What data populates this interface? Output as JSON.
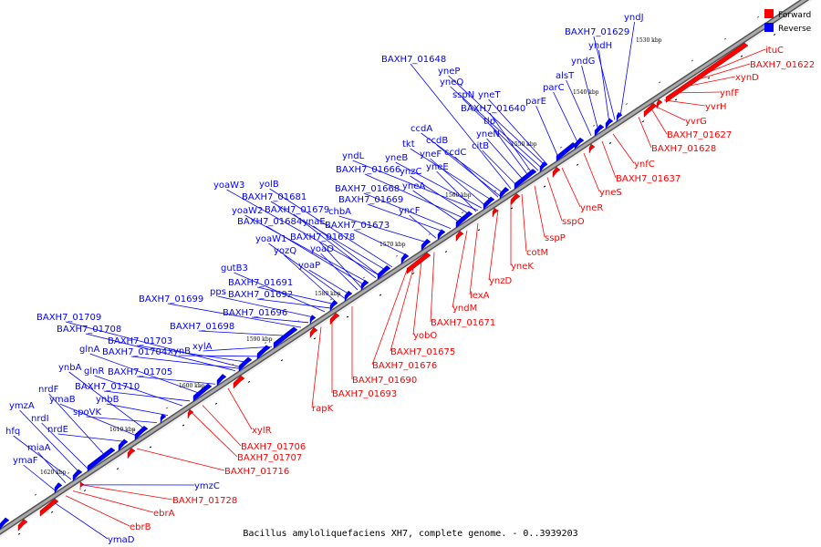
{
  "caption": "Bacillus amyloliquefaciens XH7, complete genome. - 0..3939203",
  "legend": [
    {
      "label": "Forward",
      "color": "#ff0000"
    },
    {
      "label": "Reverse",
      "color": "#0000ff"
    }
  ],
  "colors": {
    "forward": "#ff0000",
    "reverse": "#0000ff",
    "backbone": "#888888"
  },
  "ticks": [
    "1530 kbp",
    "1540 kbp",
    "1550 kbp",
    "1560 kbp",
    "1570 kbp",
    "1580 kbp",
    "1590 kbp",
    "1600 kbp",
    "1610 kbp",
    "1620 kbp"
  ],
  "reverse_genes": [
    "yndJ",
    "BAXH7_01629",
    "yndH",
    "yndG",
    "alsT",
    "parC",
    "parE",
    "BAXH7_01648",
    "yneP",
    "yneQ",
    "sspN",
    "yneT",
    "BAXH7_01640",
    "tlp",
    "yneN",
    "citB",
    "ccdA",
    "ccdB",
    "tkt",
    "ccdC",
    "yndL",
    "yneB",
    "yneF",
    "BAXH7_01666",
    "ynzC",
    "yneE",
    "yneA",
    "BAXH7_01668",
    "BAXH7_01669",
    "yncF",
    "yoaW3",
    "yolB",
    "BAXH7_01681",
    "yoaW2",
    "BAXH7_01679",
    "chbA",
    "BAXH7_01684",
    "ynaE",
    "BAXH7_01673",
    "BAXH7_01678",
    "yoaW1",
    "yozQ",
    "yoaO",
    "yoaP",
    "gutB3",
    "BAXH7_01691",
    "pps",
    "BAXH7_01692",
    "BAXH7_01699",
    "BAXH7_01696",
    "BAXH7_01709",
    "BAXH7_01698",
    "BAXH7_01708",
    "BAXH7_01703",
    "xylA",
    "glnA",
    "BAXH7_01704",
    "xynB",
    "ynbA",
    "glnR",
    "BAXH7_01705",
    "nrdF",
    "BAXH7_01710",
    "ymaB",
    "ynbB",
    "nrdI",
    "spoVK",
    "ymzA",
    "hfq",
    "nrdE",
    "miaA",
    "ymaF"
  ],
  "forward_genes": [
    "ituC",
    "BAXH7_01622",
    "xynD",
    "ynfF",
    "yvrH",
    "yvrG",
    "BAXH7_01627",
    "BAXH7_01628",
    "ynfC",
    "BAXH7_01637",
    "yneS",
    "yneR",
    "sspO",
    "sspP",
    "cotM",
    "yneK",
    "ynzD",
    "lexA",
    "yndM",
    "BAXH7_01671",
    "yobO",
    "BAXH7_01675",
    "BAXH7_01676",
    "BAXH7_01690",
    "BAXH7_01693",
    "rapK",
    "xylR",
    "BAXH7_01706",
    "BAXH7_01707",
    "BAXH7_01716",
    "BAXH7_01728",
    "ebrA",
    "ebrB"
  ],
  "reverse_bottom_genes": [
    "ymzC",
    "ymaD"
  ]
}
